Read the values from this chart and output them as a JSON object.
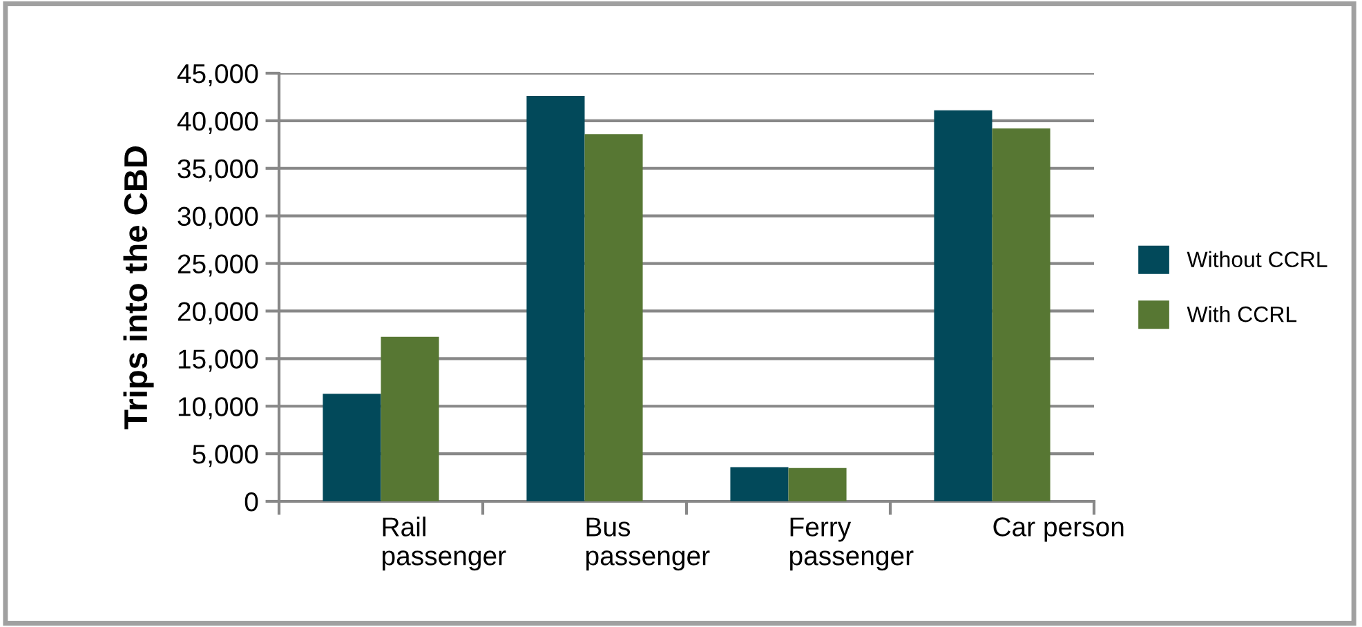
{
  "chart_data": {
    "type": "bar",
    "ylabel": "Trips into the CBD",
    "categories": [
      "Rail\npassenger",
      "Bus\npassenger",
      "Ferry\npassenger",
      "Car person"
    ],
    "series": [
      {
        "name": "Without CCRL",
        "color": "#02495a",
        "values": [
          11300,
          42600,
          3600,
          41100
        ]
      },
      {
        "name": "With CCRL",
        "color": "#577733",
        "values": [
          17300,
          38600,
          3500,
          39200
        ]
      }
    ],
    "ylim": [
      0,
      45000
    ],
    "yticks": [
      {
        "value": 0,
        "label": "0"
      },
      {
        "value": 5000,
        "label": "5,000"
      },
      {
        "value": 10000,
        "label": "10,000"
      },
      {
        "value": 15000,
        "label": "15,000"
      },
      {
        "value": 20000,
        "label": "20,000"
      },
      {
        "value": 25000,
        "label": "25,000"
      },
      {
        "value": 30000,
        "label": "30,000"
      },
      {
        "value": 35000,
        "label": "35,000"
      },
      {
        "value": 40000,
        "label": "40,000"
      },
      {
        "value": 45000,
        "label": "45,000"
      }
    ],
    "grid": "y",
    "legend": "right"
  }
}
